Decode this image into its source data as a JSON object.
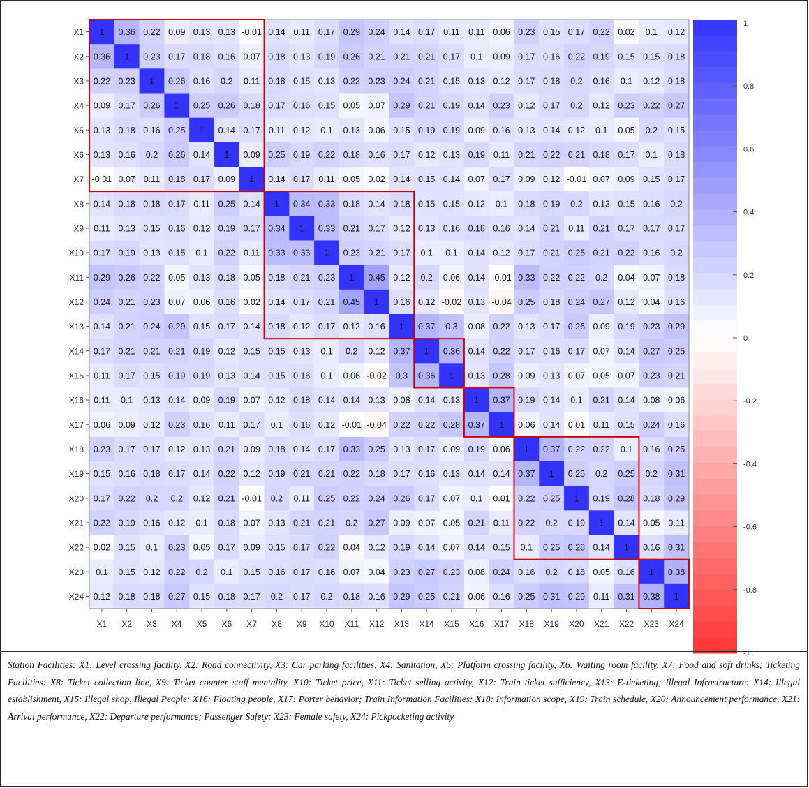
{
  "chart_data": {
    "type": "heatmap",
    "labels": [
      "X1",
      "X2",
      "X3",
      "X4",
      "X5",
      "X6",
      "X7",
      "X8",
      "X9",
      "X10",
      "X11",
      "X12",
      "X13",
      "X14",
      "X15",
      "X16",
      "X17",
      "X18",
      "X19",
      "X20",
      "X21",
      "X22",
      "X23",
      "X24"
    ],
    "matrix": [
      [
        1,
        0.36,
        0.22,
        0.09,
        0.13,
        0.13,
        -0.01,
        0.14,
        0.11,
        0.17,
        0.29,
        0.24,
        0.14,
        0.17,
        0.11,
        0.11,
        0.06,
        0.23,
        0.15,
        0.17,
        0.22,
        0.02,
        0.1,
        0.12
      ],
      [
        0.36,
        1,
        0.23,
        0.17,
        0.18,
        0.16,
        0.07,
        0.18,
        0.13,
        0.19,
        0.26,
        0.21,
        0.21,
        0.21,
        0.17,
        0.1,
        0.09,
        0.17,
        0.16,
        0.22,
        0.19,
        0.15,
        0.15,
        0.18
      ],
      [
        0.22,
        0.23,
        1,
        0.26,
        0.16,
        0.2,
        0.11,
        0.18,
        0.15,
        0.13,
        0.22,
        0.23,
        0.24,
        0.21,
        0.15,
        0.13,
        0.12,
        0.17,
        0.18,
        0.2,
        0.16,
        0.1,
        0.12,
        0.18
      ],
      [
        0.09,
        0.17,
        0.26,
        1,
        0.25,
        0.26,
        0.18,
        0.17,
        0.16,
        0.15,
        0.05,
        0.07,
        0.29,
        0.21,
        0.19,
        0.14,
        0.23,
        0.12,
        0.17,
        0.2,
        0.12,
        0.23,
        0.22,
        0.27
      ],
      [
        0.13,
        0.18,
        0.16,
        0.25,
        1,
        0.14,
        0.17,
        0.11,
        0.12,
        0.1,
        0.13,
        0.06,
        0.15,
        0.19,
        0.19,
        0.09,
        0.16,
        0.13,
        0.14,
        0.12,
        0.1,
        0.05,
        0.2,
        0.15
      ],
      [
        0.13,
        0.16,
        0.2,
        0.26,
        0.14,
        1,
        0.09,
        0.25,
        0.19,
        0.22,
        0.18,
        0.16,
        0.17,
        0.12,
        0.13,
        0.19,
        0.11,
        0.21,
        0.22,
        0.21,
        0.18,
        0.17,
        0.1,
        0.18
      ],
      [
        -0.01,
        0.07,
        0.11,
        0.18,
        0.17,
        0.09,
        1,
        0.14,
        0.17,
        0.11,
        0.05,
        0.02,
        0.14,
        0.15,
        0.14,
        0.07,
        0.17,
        0.09,
        0.12,
        -0.01,
        0.07,
        0.09,
        0.15,
        0.17
      ],
      [
        0.14,
        0.18,
        0.18,
        0.17,
        0.11,
        0.25,
        0.14,
        1,
        0.34,
        0.33,
        0.18,
        0.14,
        0.18,
        0.15,
        0.15,
        0.12,
        0.1,
        0.18,
        0.19,
        0.2,
        0.13,
        0.15,
        0.16,
        0.2
      ],
      [
        0.11,
        0.13,
        0.15,
        0.16,
        0.12,
        0.19,
        0.17,
        0.34,
        1,
        0.33,
        0.21,
        0.17,
        0.12,
        0.13,
        0.16,
        0.18,
        0.16,
        0.14,
        0.21,
        0.11,
        0.21,
        0.17,
        0.17,
        0.17
      ],
      [
        0.17,
        0.19,
        0.13,
        0.15,
        0.1,
        0.22,
        0.11,
        0.33,
        0.33,
        1,
        0.23,
        0.21,
        0.17,
        0.1,
        0.1,
        0.14,
        0.12,
        0.17,
        0.21,
        0.25,
        0.21,
        0.22,
        0.16,
        0.2
      ],
      [
        0.29,
        0.26,
        0.22,
        0.05,
        0.13,
        0.18,
        0.05,
        0.18,
        0.21,
        0.23,
        1,
        0.45,
        0.12,
        0.2,
        0.06,
        0.14,
        -0.01,
        0.33,
        0.22,
        0.22,
        0.2,
        0.04,
        0.07,
        0.18
      ],
      [
        0.24,
        0.21,
        0.23,
        0.07,
        0.06,
        0.16,
        0.02,
        0.14,
        0.17,
        0.21,
        0.45,
        1,
        0.16,
        0.12,
        -0.02,
        0.13,
        -0.04,
        0.25,
        0.18,
        0.24,
        0.27,
        0.12,
        0.04,
        0.16
      ],
      [
        0.14,
        0.21,
        0.24,
        0.29,
        0.15,
        0.17,
        0.14,
        0.18,
        0.12,
        0.17,
        0.12,
        0.16,
        1,
        0.37,
        0.3,
        0.08,
        0.22,
        0.13,
        0.17,
        0.26,
        0.09,
        0.19,
        0.23,
        0.29
      ],
      [
        0.17,
        0.21,
        0.21,
        0.21,
        0.19,
        0.12,
        0.15,
        0.15,
        0.13,
        0.1,
        0.2,
        0.12,
        0.37,
        1,
        0.36,
        0.14,
        0.22,
        0.17,
        0.16,
        0.17,
        0.07,
        0.14,
        0.27,
        0.25
      ],
      [
        0.11,
        0.17,
        0.15,
        0.19,
        0.19,
        0.13,
        0.14,
        0.15,
        0.16,
        0.1,
        0.06,
        -0.02,
        0.3,
        0.36,
        1,
        0.13,
        0.28,
        0.09,
        0.13,
        0.07,
        0.05,
        0.07,
        0.23,
        0.21
      ],
      [
        0.11,
        0.1,
        0.13,
        0.14,
        0.09,
        0.19,
        0.07,
        0.12,
        0.18,
        0.14,
        0.14,
        0.13,
        0.08,
        0.14,
        0.13,
        1,
        0.37,
        0.19,
        0.14,
        0.1,
        0.21,
        0.14,
        0.08,
        0.06
      ],
      [
        0.06,
        0.09,
        0.12,
        0.23,
        0.16,
        0.11,
        0.17,
        0.1,
        0.16,
        0.12,
        -0.01,
        -0.04,
        0.22,
        0.22,
        0.28,
        0.37,
        1,
        0.06,
        0.14,
        0.01,
        0.11,
        0.15,
        0.24,
        0.16
      ],
      [
        0.23,
        0.17,
        0.17,
        0.12,
        0.13,
        0.21,
        0.09,
        0.18,
        0.14,
        0.17,
        0.33,
        0.25,
        0.13,
        0.17,
        0.09,
        0.19,
        0.06,
        1,
        0.37,
        0.22,
        0.22,
        0.1,
        0.16,
        0.25
      ],
      [
        0.15,
        0.16,
        0.18,
        0.17,
        0.14,
        0.22,
        0.12,
        0.19,
        0.21,
        0.21,
        0.22,
        0.18,
        0.17,
        0.16,
        0.13,
        0.14,
        0.14,
        0.37,
        1,
        0.25,
        0.2,
        0.25,
        0.2,
        0.31
      ],
      [
        0.17,
        0.22,
        0.2,
        0.2,
        0.12,
        0.21,
        -0.01,
        0.2,
        0.11,
        0.25,
        0.22,
        0.24,
        0.26,
        0.17,
        0.07,
        0.1,
        0.01,
        0.22,
        0.25,
        1,
        0.19,
        0.28,
        0.18,
        0.29
      ],
      [
        0.22,
        0.19,
        0.16,
        0.12,
        0.1,
        0.18,
        0.07,
        0.13,
        0.21,
        0.21,
        0.2,
        0.27,
        0.09,
        0.07,
        0.05,
        0.21,
        0.11,
        0.22,
        0.2,
        0.19,
        1,
        0.14,
        0.05,
        0.11
      ],
      [
        0.02,
        0.15,
        0.1,
        0.23,
        0.05,
        0.17,
        0.09,
        0.15,
        0.17,
        0.22,
        0.04,
        0.12,
        0.19,
        0.14,
        0.07,
        0.14,
        0.15,
        0.1,
        0.25,
        0.28,
        0.14,
        1,
        0.16,
        0.31
      ],
      [
        0.1,
        0.15,
        0.12,
        0.22,
        0.2,
        0.1,
        0.15,
        0.16,
        0.17,
        0.16,
        0.07,
        0.04,
        0.23,
        0.27,
        0.23,
        0.08,
        0.24,
        0.16,
        0.2,
        0.18,
        0.05,
        0.16,
        1,
        0.38
      ],
      [
        0.12,
        0.18,
        0.18,
        0.27,
        0.15,
        0.18,
        0.17,
        0.2,
        0.17,
        0.2,
        0.18,
        0.16,
        0.29,
        0.25,
        0.21,
        0.06,
        0.16,
        0.25,
        0.31,
        0.29,
        0.11,
        0.31,
        0.38,
        1
      ]
    ],
    "groups": [
      [
        1,
        7
      ],
      [
        8,
        13
      ],
      [
        14,
        15
      ],
      [
        16,
        17
      ],
      [
        18,
        22
      ],
      [
        23,
        24
      ]
    ],
    "colorbar": {
      "range": [
        -1,
        1
      ],
      "ticks": [
        1,
        0.8,
        0.6,
        0.4,
        0.2,
        0,
        -0.2,
        -0.4,
        -0.6,
        -0.8,
        -1
      ],
      "tick_labels": [
        "1",
        "0.8",
        "0.6",
        "0.4",
        "0.2",
        "0",
        "-0.2",
        "-0.4",
        "-0.6",
        "-0.8",
        "-1"
      ],
      "high_color": "#3333ff",
      "mid_color": "#ffffff",
      "low_color": "#ff3333"
    },
    "group_box_color": "#cc0000",
    "title": "",
    "xlabel": "",
    "ylabel": ""
  },
  "caption": "Station Facilities: X1: Level crossing facility, X2: Road connectivity, X3: Car parking facilities, X4: Sanitation, X5: Platform crossing facility, X6: Waiting room facility, X7: Food and soft drinks; Ticketing Facilities: X8: Ticket collection line, X9: Ticket counter staff mentality, X10: Ticket price, X11: Ticket selling activity, X12: Train ticket sufficiency, X13: E-ticketing; Illegal Infrastructure: X14: Illegal establishment, X15: Illegal shop, Illegal People: X16: Floating people, X17: Porter behavior; Train Information Facilities: X18: Information scope, X19: Train schedule, X20: Announcement performance, X21: Arrival performance, X22: Departure performance; Passenger Safety: X23: Female safety, X24: Pickpocketing activity"
}
